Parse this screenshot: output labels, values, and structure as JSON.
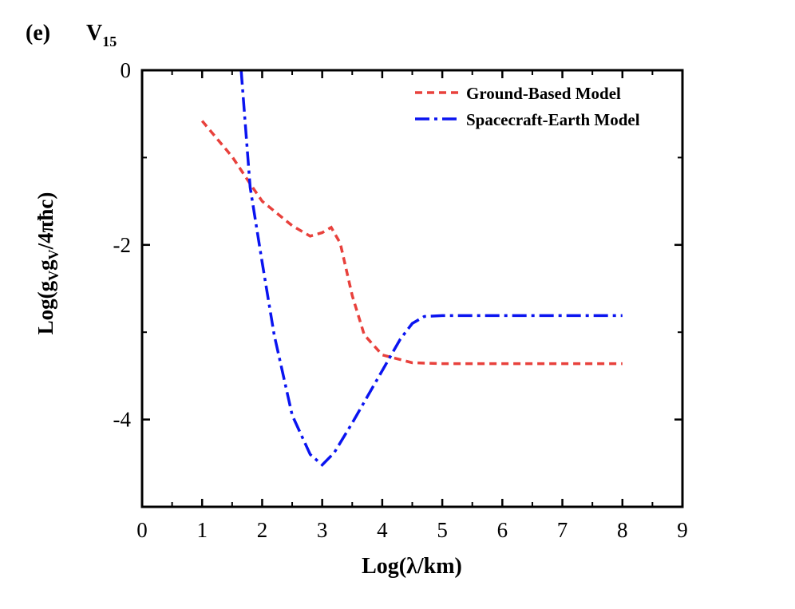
{
  "chart_data": {
    "type": "line",
    "panel_label": "(e)",
    "title": "V",
    "title_subscript": "15",
    "xlabel": "Log(λ/km)",
    "ylabel": [
      {
        "text": "Log(g"
      },
      {
        "text": "V",
        "sub": true
      },
      {
        "text": "g"
      },
      {
        "text": "V",
        "sub": true
      },
      {
        "text": "/4πħc)"
      }
    ],
    "xlim": [
      0,
      9
    ],
    "xticks": [
      0,
      1,
      2,
      3,
      4,
      5,
      6,
      7,
      8,
      9
    ],
    "ylim": [
      -5,
      0
    ],
    "yticks": [
      0,
      -2,
      -4
    ],
    "legend": "upper right",
    "series": [
      {
        "name": "Ground-Based Model",
        "color": "#e8413c",
        "dash": "dashed",
        "x": [
          1,
          1.5,
          1.8,
          2,
          2.5,
          2.8,
          3,
          3.15,
          3.3,
          3.5,
          3.7,
          4,
          4.5,
          5,
          6,
          7,
          8
        ],
        "values": [
          -0.58,
          -0.99,
          -1.3,
          -1.5,
          -1.78,
          -1.9,
          -1.86,
          -1.8,
          -1.98,
          -2.58,
          -3.03,
          -3.26,
          -3.35,
          -3.36,
          -3.36,
          -3.36,
          -3.36
        ]
      },
      {
        "name": "Spacecraft-Earth Model",
        "color": "#0a14f0",
        "dash": "dashdot",
        "x": [
          1.65,
          1.8,
          2,
          2.2,
          2.5,
          2.8,
          3,
          3.2,
          3.5,
          4,
          4.3,
          4.5,
          4.7,
          5,
          6,
          7,
          8
        ],
        "values": [
          0,
          -1.34,
          -2.2,
          -3.03,
          -3.95,
          -4.4,
          -4.52,
          -4.38,
          -4.04,
          -3.44,
          -3.08,
          -2.9,
          -2.82,
          -2.81,
          -2.81,
          -2.81,
          -2.81
        ]
      }
    ]
  }
}
